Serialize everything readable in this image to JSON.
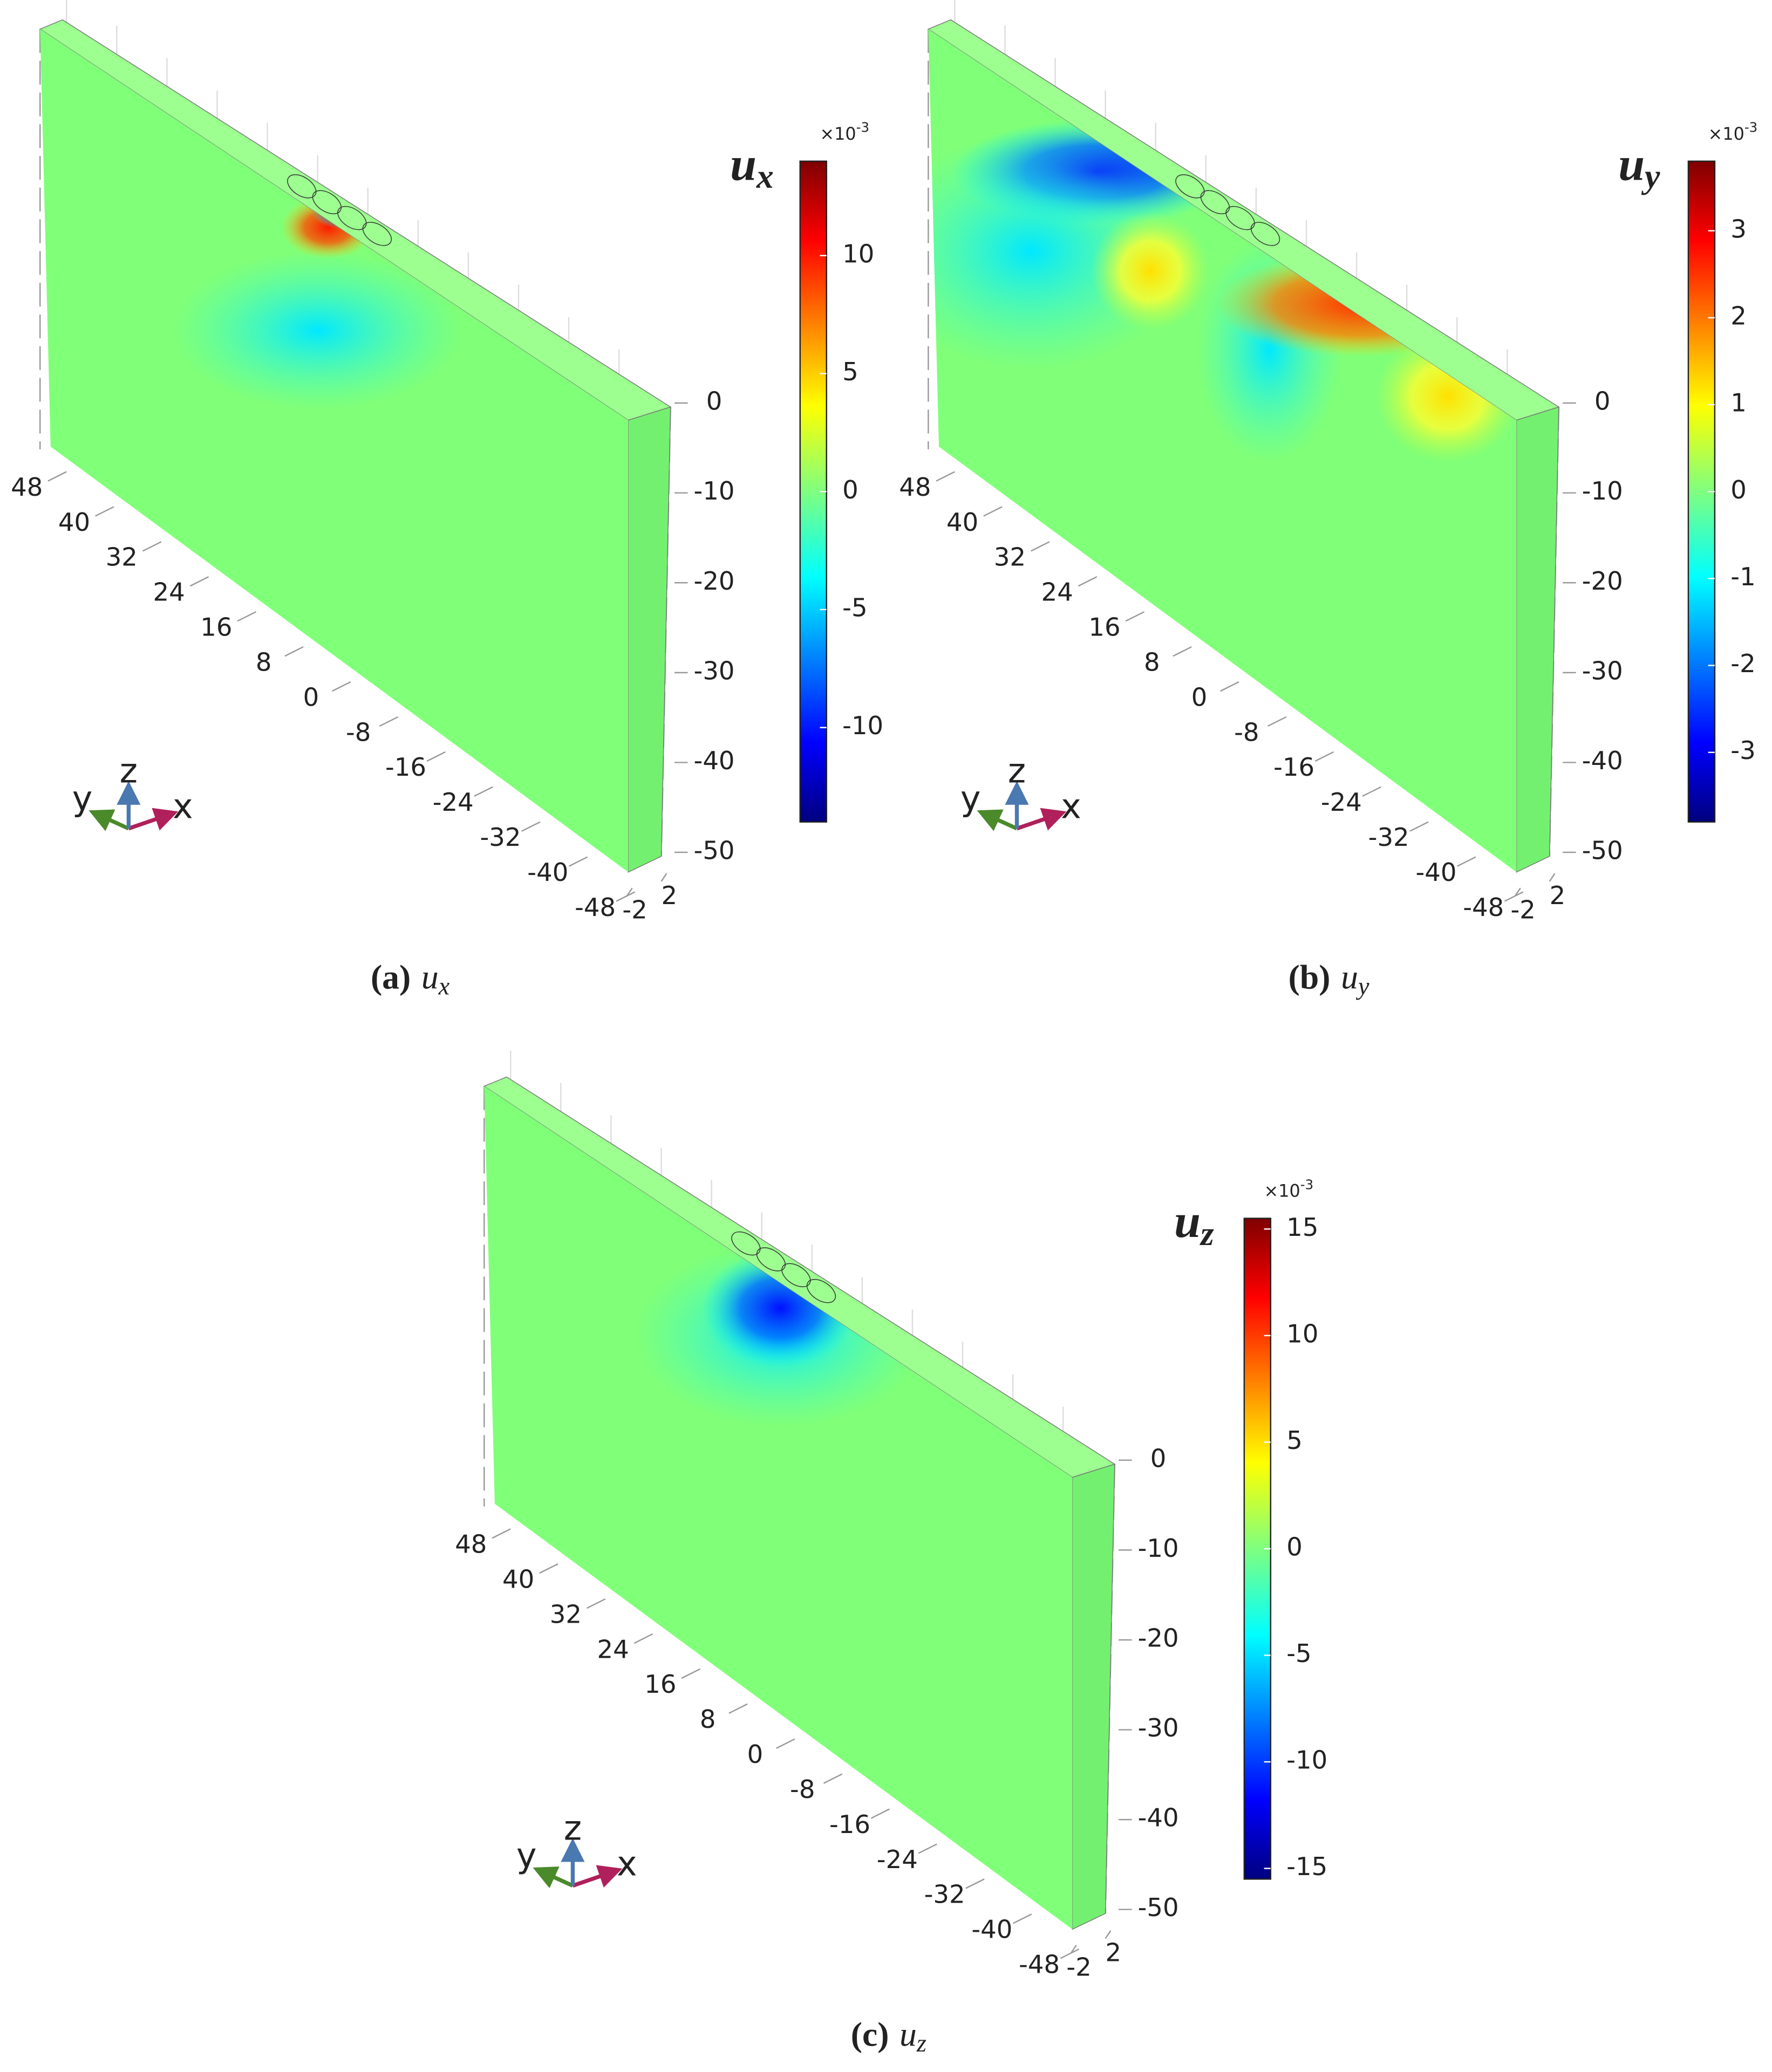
{
  "chart_data": [
    {
      "type": "surface",
      "caption": {
        "label": "(a)",
        "symbol": "u",
        "subscript": "x"
      },
      "colorbar": {
        "title": "u",
        "subscript": "x",
        "multiplier": "×10",
        "exponent": "-3",
        "colormap": "jet",
        "lim": [
          -14,
          14
        ],
        "ticks": [
          10,
          5,
          0,
          -5,
          -10
        ]
      },
      "xlim": [
        48,
        -48
      ],
      "xticks": [
        48,
        40,
        32,
        24,
        16,
        8,
        0,
        -8,
        -16,
        -24,
        -32,
        -40,
        -48
      ],
      "ylim": [
        -2,
        2
      ],
      "yticks": [
        2,
        -2
      ],
      "zlim": [
        0,
        -50
      ],
      "zticks": [
        0,
        -10,
        -20,
        -30,
        -40,
        -50
      ],
      "triad_labels": [
        "y",
        "z",
        "x"
      ]
    },
    {
      "type": "surface",
      "caption": {
        "label": "(b)",
        "symbol": "u",
        "subscript": "y"
      },
      "colorbar": {
        "title": "u",
        "subscript": "y",
        "multiplier": "×10",
        "exponent": "-3",
        "colormap": "jet",
        "lim": [
          -3.8,
          3.8
        ],
        "ticks": [
          3,
          2,
          1,
          0,
          -1,
          -2,
          -3
        ]
      },
      "xlim": [
        48,
        -48
      ],
      "xticks": [
        48,
        40,
        32,
        24,
        16,
        8,
        0,
        -8,
        -16,
        -24,
        -32,
        -40,
        -48
      ],
      "ylim": [
        -2,
        2
      ],
      "yticks": [
        2,
        -2
      ],
      "zlim": [
        0,
        -50
      ],
      "zticks": [
        0,
        -10,
        -20,
        -30,
        -40,
        -50
      ],
      "triad_labels": [
        "y",
        "z",
        "x"
      ]
    },
    {
      "type": "surface",
      "caption": {
        "label": "(c)",
        "symbol": "u",
        "subscript": "z"
      },
      "colorbar": {
        "title": "u",
        "subscript": "z",
        "multiplier": "×10",
        "exponent": "-3",
        "colormap": "jet",
        "lim": [
          -15.5,
          15.5
        ],
        "ticks": [
          15,
          10,
          5,
          0,
          -5,
          -10,
          -15
        ]
      },
      "xlim": [
        48,
        -48
      ],
      "xticks": [
        48,
        40,
        32,
        24,
        16,
        8,
        0,
        -8,
        -16,
        -24,
        -32,
        -40,
        -48
      ],
      "ylim": [
        -2,
        2
      ],
      "yticks": [
        2,
        -2
      ],
      "zlim": [
        0,
        -50
      ],
      "zticks": [
        0,
        -10,
        -20,
        -30,
        -40,
        -50
      ],
      "triad_labels": [
        "y",
        "z",
        "x"
      ]
    }
  ]
}
